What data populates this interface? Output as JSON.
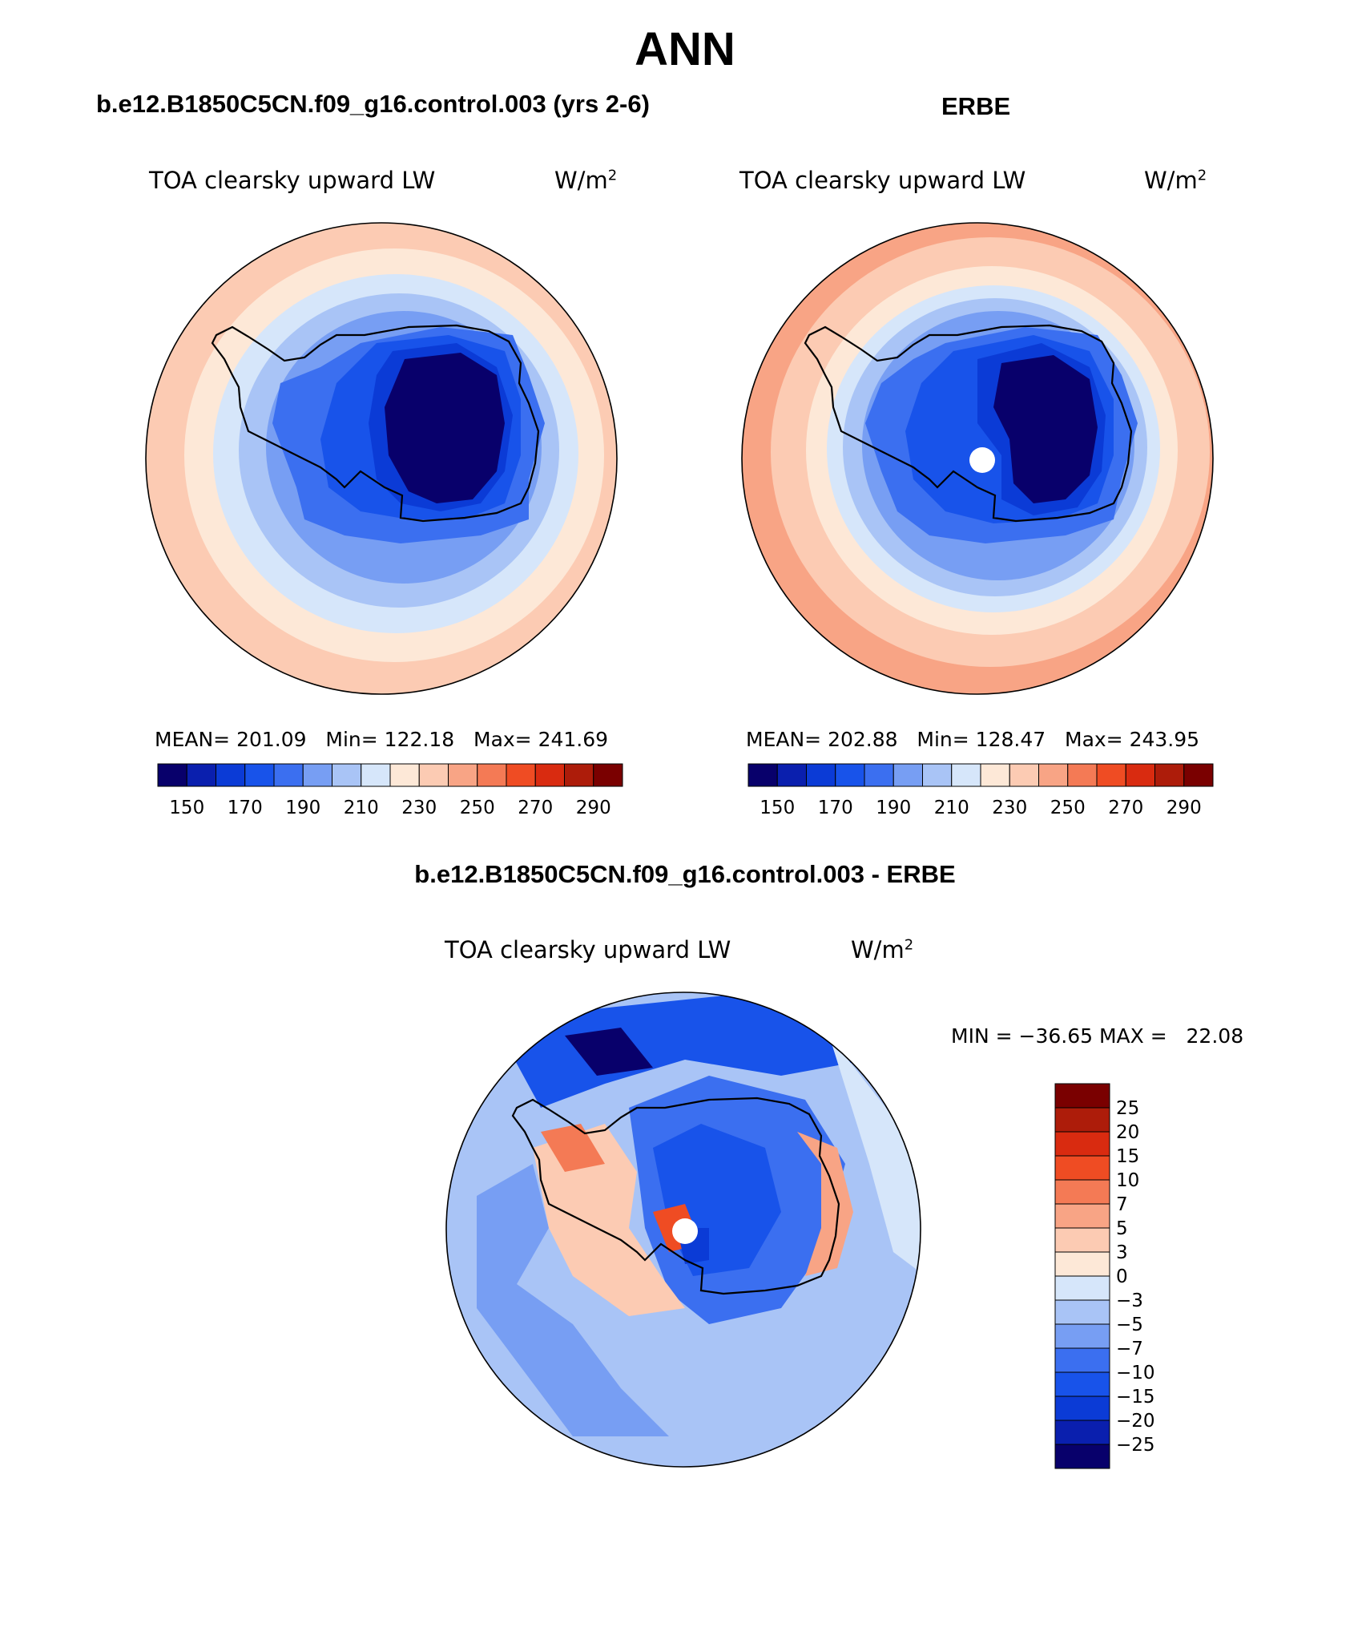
{
  "title": "ANN",
  "panels": [
    {
      "case_title": "b.e12.B1850C5CN.f09_g16.control.003 (yrs 2-6)",
      "variable": "TOA clearsky upward LW",
      "units_base": "W/m",
      "units_exp": "2",
      "mean_label": "MEAN=",
      "mean": "201.09",
      "min_label": "Min=",
      "min": "122.18",
      "max_label": "Max=",
      "max": "241.69",
      "has_pole_hole": false
    },
    {
      "case_title": "ERBE",
      "variable": "TOA clearsky upward LW",
      "units_base": "W/m",
      "units_exp": "2",
      "mean_label": "MEAN=",
      "mean": "202.88",
      "min_label": "Min=",
      "min": "128.47",
      "max_label": "Max=",
      "max": "243.95",
      "has_pole_hole": true
    }
  ],
  "abs_colorbar": {
    "colors": [
      "#08006b",
      "#0a1fae",
      "#0b3bd6",
      "#1853ea",
      "#3b6ff0",
      "#779ef3",
      "#a9c4f6",
      "#d6e6fa",
      "#fde8d7",
      "#fccbb3",
      "#f8a485",
      "#f47a55",
      "#ef4c23",
      "#d92b10",
      "#ad1c0a",
      "#7a0000"
    ],
    "tick_labels": [
      "150",
      "170",
      "190",
      "210",
      "230",
      "250",
      "270",
      "290"
    ]
  },
  "diff_panel": {
    "case_title": "b.e12.B1850C5CN.f09_g16.control.003 - ERBE",
    "variable": "TOA clearsky upward LW",
    "units_base": "W/m",
    "units_exp": "2",
    "min_label": "MIN =",
    "min": "−36.65",
    "max_label": "MAX =",
    "max": "22.08"
  },
  "diff_colorbar": {
    "colors_top_to_bottom": [
      "#7a0000",
      "#ad1c0a",
      "#d92b10",
      "#ef4c23",
      "#f47a55",
      "#f8a485",
      "#fccbb3",
      "#fde8d7",
      "#d6e6fa",
      "#a9c4f6",
      "#779ef3",
      "#3b6ff0",
      "#1853ea",
      "#0b3bd6",
      "#0a1fae",
      "#08006b"
    ],
    "tick_labels_top_to_bottom": [
      "25",
      "20",
      "15",
      "10",
      "7",
      "5",
      "3",
      "0",
      "−3",
      "−5",
      "−7",
      "−10",
      "−15",
      "−20",
      "−25"
    ]
  }
}
